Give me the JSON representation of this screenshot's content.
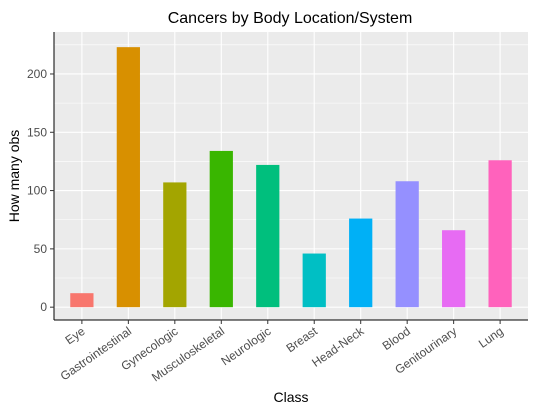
{
  "chart_data": {
    "type": "bar",
    "title": "Cancers by Body Location/System",
    "xlabel": "Class",
    "ylabel": "How many obs",
    "categories": [
      "Eye",
      "Gastrointestinal",
      "Gynecologic",
      "Musculoskeletal",
      "Neurologic",
      "Breast",
      "Head-Neck",
      "Blood",
      "Genitourinary",
      "Lung"
    ],
    "values": [
      12,
      223,
      107,
      134,
      122,
      46,
      76,
      108,
      66,
      126
    ],
    "colors": [
      "#F8766D",
      "#D89000",
      "#A3A500",
      "#39B600",
      "#00BF7D",
      "#00BFC4",
      "#00B0F6",
      "#9590FF",
      "#E76BF3",
      "#FF62BC"
    ],
    "yticks": [
      0,
      50,
      100,
      150,
      200
    ],
    "ylim": [
      -11,
      236
    ],
    "grid": true,
    "panel_background": "#EBEBEB",
    "legend": "none"
  }
}
